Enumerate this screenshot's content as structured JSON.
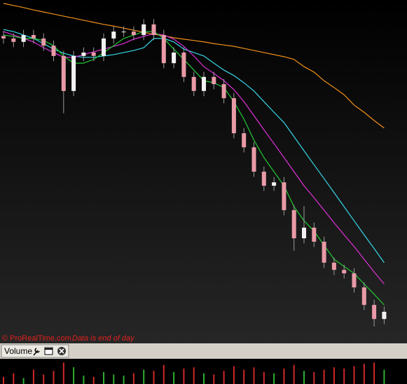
{
  "chart_data": [
    {
      "type": "candlestick",
      "credit": "© ProRealTime.com",
      "note": "Data is end of day",
      "ylim": [
        0,
        100
      ],
      "up_color": "#f2f2f2",
      "down_color": "#e89aa6",
      "wick_color": "#9a9a9a",
      "open": [
        89.5,
        88.8,
        87.8,
        89.8,
        88.8,
        86.7,
        83.7,
        73.5,
        83.7,
        84.7,
        83.7,
        88.8,
        90.8,
        90.8,
        89.8,
        92.9,
        89.8,
        81.6,
        84.7,
        77.6,
        73.5,
        77.6,
        75.5,
        71.4,
        61.2,
        57.1,
        50.0,
        45.9,
        46.9,
        38.8,
        30.6,
        33.7,
        29.6,
        23.5,
        21.4,
        20.4,
        16.3,
        11.2,
        7.1
      ],
      "high": [
        91.0,
        90.3,
        91.3,
        91.3,
        90.3,
        88.2,
        85.2,
        85.2,
        86.2,
        86.2,
        90.3,
        92.3,
        92.3,
        92.3,
        94.4,
        94.4,
        91.3,
        86.2,
        86.2,
        79.1,
        79.1,
        79.1,
        77.0,
        72.9,
        62.7,
        58.6,
        51.5,
        48.4,
        48.4,
        40.3,
        40.0,
        35.2,
        31.1,
        25.0,
        22.9,
        21.9,
        17.8,
        12.7,
        10.7
      ],
      "low": [
        87.3,
        86.3,
        86.3,
        87.3,
        85.2,
        82.2,
        67.0,
        72.0,
        82.2,
        82.2,
        82.2,
        87.3,
        89.3,
        88.3,
        88.3,
        88.3,
        80.1,
        80.1,
        76.1,
        72.0,
        72.0,
        74.0,
        69.9,
        59.7,
        55.6,
        48.5,
        44.4,
        44.4,
        37.3,
        27.0,
        29.1,
        28.1,
        22.0,
        19.9,
        18.9,
        14.8,
        9.7,
        4.9,
        5.6
      ],
      "close": [
        88.8,
        87.8,
        89.8,
        88.8,
        86.7,
        83.7,
        73.5,
        83.7,
        84.7,
        83.7,
        88.8,
        90.8,
        90.8,
        89.8,
        92.9,
        89.8,
        81.6,
        84.7,
        77.6,
        73.5,
        77.6,
        75.5,
        71.4,
        61.2,
        57.1,
        50.0,
        45.9,
        46.9,
        38.8,
        30.6,
        33.7,
        29.6,
        23.5,
        21.4,
        20.4,
        16.3,
        11.2,
        7.1,
        9.2
      ],
      "series": [
        {
          "color": "#f0901a",
          "values": [
            99.0,
            98.4,
            97.8,
            97.1,
            96.5,
            95.9,
            95.3,
            94.7,
            94.1,
            93.5,
            92.9,
            92.4,
            91.8,
            91.2,
            90.6,
            90.0,
            89.6,
            89.0,
            88.6,
            88.2,
            87.8,
            87.3,
            86.9,
            86.5,
            85.9,
            85.3,
            84.7,
            84.1,
            83.5,
            82.7,
            80.6,
            79.0,
            76.5,
            74.5,
            72.4,
            69.4,
            67.3,
            64.9,
            62.7
          ]
        },
        {
          "color": "#35d6e6",
          "values": [
            91.4,
            90.8,
            89.8,
            88.8,
            87.3,
            85.7,
            84.5,
            83.7,
            83.3,
            83.3,
            83.7,
            84.1,
            84.7,
            85.3,
            86.1,
            88.8,
            88.8,
            87.8,
            85.7,
            84.7,
            83.7,
            81.6,
            79.6,
            78.0,
            75.9,
            73.5,
            70.4,
            67.3,
            64.3,
            60.2,
            56.1,
            52.0,
            48.0,
            43.9,
            39.8,
            35.7,
            31.6,
            27.6,
            23.5
          ]
        },
        {
          "color": "#e030d8",
          "values": [
            90.8,
            89.8,
            88.8,
            87.8,
            86.1,
            84.7,
            83.3,
            83.3,
            84.1,
            84.9,
            85.7,
            86.5,
            87.3,
            88.6,
            89.4,
            90.2,
            89.8,
            88.6,
            86.5,
            83.7,
            80.6,
            78.6,
            76.5,
            73.9,
            70.4,
            66.3,
            62.2,
            58.2,
            54.1,
            50.0,
            45.9,
            42.4,
            38.8,
            35.1,
            31.6,
            28.2,
            24.5,
            20.8,
            17.3
          ]
        },
        {
          "color": "#22c832",
          "values": [
            89.8,
            89.4,
            88.8,
            88.8,
            88.2,
            86.7,
            83.7,
            81.6,
            81.6,
            82.7,
            84.7,
            86.7,
            88.8,
            89.8,
            90.8,
            90.8,
            88.8,
            85.7,
            82.7,
            79.6,
            76.5,
            75.9,
            74.5,
            70.4,
            65.3,
            59.2,
            54.1,
            50.0,
            45.9,
            39.8,
            35.7,
            32.7,
            28.6,
            24.5,
            22.4,
            20.4,
            17.3,
            14.3,
            11.2
          ]
        }
      ]
    },
    {
      "type": "bar",
      "title": "Volume",
      "ylim": [
        0,
        100
      ],
      "up_color": "#2fae2f",
      "down_color": "#d02828",
      "values": [
        30,
        45,
        25,
        60,
        40,
        55,
        90,
        70,
        35,
        30,
        50,
        40,
        35,
        45,
        60,
        55,
        80,
        50,
        65,
        70,
        45,
        40,
        55,
        75,
        60,
        70,
        50,
        45,
        65,
        80,
        55,
        50,
        60,
        70,
        65,
        75,
        85,
        90,
        60
      ]
    }
  ]
}
